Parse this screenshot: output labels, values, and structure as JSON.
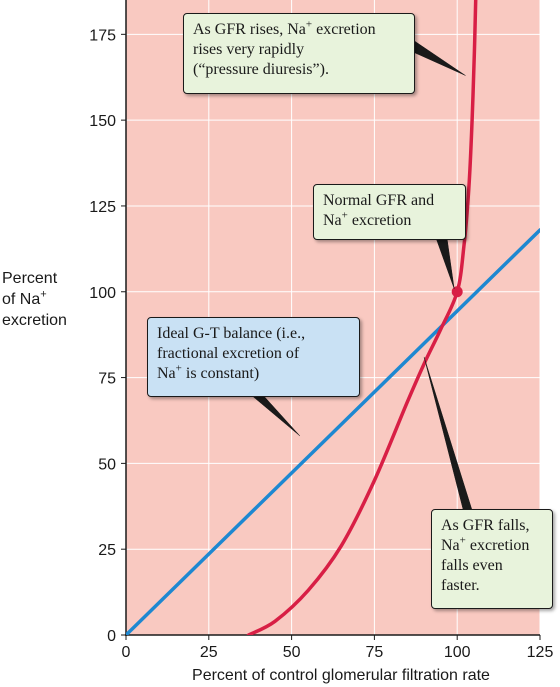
{
  "chart_data": {
    "type": "line",
    "xlabel": "Percent of control glomerular filtration rate",
    "ylabel": {
      "line1": "Percent",
      "line2": "of Na",
      "line2_sup": "+",
      "line3": "excretion"
    },
    "xlim": [
      0,
      125
    ],
    "ylim": [
      0,
      185
    ],
    "x_ticks": [
      0,
      25,
      50,
      75,
      100,
      125
    ],
    "y_ticks": [
      0,
      25,
      50,
      75,
      100,
      125,
      150,
      175
    ],
    "grid": true,
    "colors": {
      "plot_background": "#f9c9c1",
      "grid": "#ffffff",
      "ideal_line": "#1e88d1",
      "actual_curve": "#d81f45",
      "normal_point": "#d81f45"
    },
    "series": [
      {
        "x": [
          0,
          125
        ],
        "y": [
          0,
          118
        ]
      },
      {
        "x": [
          37,
          45,
          55,
          65,
          75,
          85,
          90,
          95,
          100,
          102,
          103.5,
          104.5,
          105.2,
          105.6
        ],
        "y": [
          0,
          4,
          13,
          26,
          45,
          68,
          79,
          89,
          100,
          113,
          130,
          150,
          170,
          185
        ]
      }
    ],
    "points": [
      {
        "x": 100,
        "y": 100
      }
    ],
    "annotations": {
      "pressure": {
        "line1_pre": "As GFR rises, Na",
        "line1_sup": "+",
        "line1_post": " excretion",
        "line2": "rises very rapidly",
        "line3": "(“pressure diuresis”)."
      },
      "normal": {
        "line1": "Normal GFR and",
        "line2_pre": "Na",
        "line2_sup": "+",
        "line2_post": " excretion"
      },
      "ideal": {
        "line1": "Ideal G-T balance (i.e.,",
        "line2": "fractional excretion of",
        "line3_pre": "Na",
        "line3_sup": "+",
        "line3_post": " is constant)"
      },
      "falls": {
        "line1": "As GFR falls,",
        "line2_pre": "Na",
        "line2_sup": "+",
        "line2_post": " excretion",
        "line3": "falls even",
        "line4": "faster."
      }
    }
  }
}
